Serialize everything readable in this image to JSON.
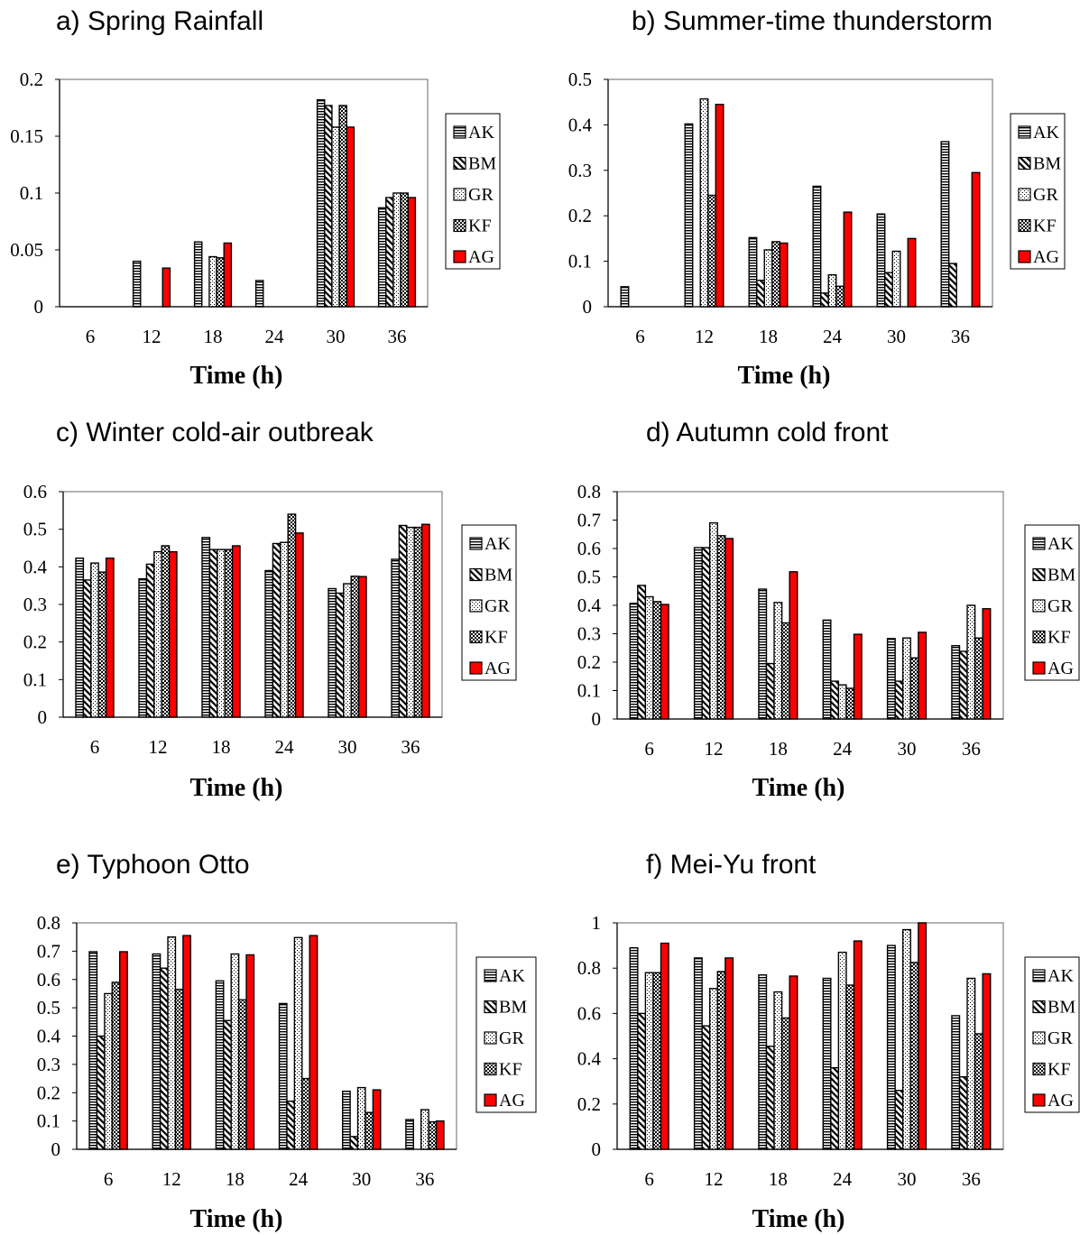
{
  "series_names": [
    "AK",
    "BM",
    "GR",
    "KF",
    "AG"
  ],
  "series_styles": {
    "AK": {
      "pattern": "horizontal-stripes",
      "color": "#000000"
    },
    "BM": {
      "pattern": "diagonal-stripes",
      "color": "#000000"
    },
    "GR": {
      "pattern": "dots",
      "color": "#000000"
    },
    "KF": {
      "pattern": "checkerboard",
      "color": "#000000"
    },
    "AG": {
      "pattern": "solid",
      "color": "#ff0000"
    }
  },
  "chart_data": [
    {
      "type": "bar",
      "title": "a) Spring Rainfall",
      "xlabel": "Time (h)",
      "ylabel": "",
      "categories": [
        "6",
        "12",
        "18",
        "24",
        "30",
        "36"
      ],
      "yticks": [
        "0",
        "0.05",
        "0.1",
        "0.15",
        "0.2"
      ],
      "ylim": [
        0,
        0.2
      ],
      "legend": [
        "AK",
        "BM",
        "GR",
        "KF",
        "AG"
      ],
      "legend_position": "right",
      "grid": false,
      "series": [
        {
          "name": "AK",
          "values": [
            0,
            0.04,
            0.057,
            0.023,
            0.182,
            0.087
          ]
        },
        {
          "name": "BM",
          "values": [
            0,
            0,
            0,
            0,
            0.177,
            0.096
          ]
        },
        {
          "name": "GR",
          "values": [
            0,
            0,
            0.044,
            0,
            0.158,
            0.1
          ]
        },
        {
          "name": "KF",
          "values": [
            0,
            0,
            0.043,
            0,
            0.177,
            0.1
          ]
        },
        {
          "name": "AG",
          "values": [
            0,
            0.034,
            0.056,
            0,
            0.158,
            0.096
          ]
        }
      ]
    },
    {
      "type": "bar",
      "title": "b) Summer-time thunderstorm",
      "xlabel": "Time (h)",
      "ylabel": "",
      "categories": [
        "6",
        "12",
        "18",
        "24",
        "30",
        "36"
      ],
      "yticks": [
        "0",
        "0.1",
        "0.2",
        "0.3",
        "0.4",
        "0.5"
      ],
      "ylim": [
        0,
        0.5
      ],
      "legend": [
        "AK",
        "BM",
        "GR",
        "KF",
        "AG"
      ],
      "legend_position": "right",
      "grid": false,
      "series": [
        {
          "name": "AK",
          "values": [
            0.044,
            0.402,
            0.152,
            0.265,
            0.204,
            0.363
          ]
        },
        {
          "name": "BM",
          "values": [
            0,
            0,
            0.058,
            0.03,
            0.075,
            0.095
          ]
        },
        {
          "name": "GR",
          "values": [
            0,
            0.457,
            0.125,
            0.07,
            0.122,
            0
          ]
        },
        {
          "name": "KF",
          "values": [
            0,
            0.245,
            0.143,
            0.045,
            0,
            0
          ]
        },
        {
          "name": "AG",
          "values": [
            0,
            0.445,
            0.14,
            0.208,
            0.15,
            0.295
          ]
        }
      ]
    },
    {
      "type": "bar",
      "title": "c) Winter cold-air outbreak",
      "xlabel": "Time (h)",
      "ylabel": "",
      "categories": [
        "6",
        "12",
        "18",
        "24",
        "30",
        "36"
      ],
      "yticks": [
        "0",
        "0.1",
        "0.2",
        "0.3",
        "0.4",
        "0.5",
        "0.6"
      ],
      "ylim": [
        0,
        0.6
      ],
      "legend": [
        "AK",
        "BM",
        "GR",
        "KF",
        "AG"
      ],
      "legend_position": "right",
      "grid": false,
      "series": [
        {
          "name": "AK",
          "values": [
            0.423,
            0.368,
            0.478,
            0.39,
            0.342,
            0.42
          ]
        },
        {
          "name": "BM",
          "values": [
            0.365,
            0.407,
            0.446,
            0.462,
            0.33,
            0.51
          ]
        },
        {
          "name": "GR",
          "values": [
            0.41,
            0.44,
            0.446,
            0.465,
            0.355,
            0.505
          ]
        },
        {
          "name": "KF",
          "values": [
            0.386,
            0.456,
            0.446,
            0.54,
            0.375,
            0.505
          ]
        },
        {
          "name": "AG",
          "values": [
            0.423,
            0.44,
            0.456,
            0.49,
            0.374,
            0.513
          ]
        }
      ]
    },
    {
      "type": "bar",
      "title": "d) Autumn cold front",
      "xlabel": "Time (h)",
      "ylabel": "",
      "categories": [
        "6",
        "12",
        "18",
        "24",
        "30",
        "36"
      ],
      "yticks": [
        "0",
        "0.1",
        "0.2",
        "0.3",
        "0.4",
        "0.5",
        "0.6",
        "0.7",
        "0.8"
      ],
      "ylim": [
        0,
        0.8
      ],
      "legend": [
        "AK",
        "BM",
        "GR",
        "KF",
        "AG"
      ],
      "legend_position": "right",
      "grid": false,
      "series": [
        {
          "name": "AK",
          "values": [
            0.407,
            0.603,
            0.457,
            0.348,
            0.283,
            0.258
          ]
        },
        {
          "name": "BM",
          "values": [
            0.47,
            0.603,
            0.195,
            0.133,
            0.133,
            0.238
          ]
        },
        {
          "name": "GR",
          "values": [
            0.43,
            0.69,
            0.41,
            0.12,
            0.285,
            0.4
          ]
        },
        {
          "name": "KF",
          "values": [
            0.413,
            0.645,
            0.338,
            0.108,
            0.215,
            0.285
          ]
        },
        {
          "name": "AG",
          "values": [
            0.403,
            0.635,
            0.518,
            0.298,
            0.305,
            0.388
          ]
        }
      ]
    },
    {
      "type": "bar",
      "title": "e) Typhoon Otto",
      "xlabel": "Time (h)",
      "ylabel": "",
      "categories": [
        "6",
        "12",
        "18",
        "24",
        "30",
        "36"
      ],
      "yticks": [
        "0",
        "0.1",
        "0.2",
        "0.3",
        "0.4",
        "0.5",
        "0.6",
        "0.7",
        "0.8"
      ],
      "ylim": [
        0,
        0.8
      ],
      "legend": [
        "AK",
        "BM",
        "GR",
        "KF",
        "AG"
      ],
      "legend_position": "right",
      "grid": false,
      "series": [
        {
          "name": "AK",
          "values": [
            0.698,
            0.69,
            0.595,
            0.515,
            0.205,
            0.105
          ]
        },
        {
          "name": "BM",
          "values": [
            0.4,
            0.64,
            0.455,
            0.17,
            0.045,
            0
          ]
        },
        {
          "name": "GR",
          "values": [
            0.55,
            0.75,
            0.69,
            0.748,
            0.218,
            0.14
          ]
        },
        {
          "name": "KF",
          "values": [
            0.59,
            0.565,
            0.528,
            0.25,
            0.13,
            0.097
          ]
        },
        {
          "name": "AG",
          "values": [
            0.698,
            0.755,
            0.687,
            0.755,
            0.21,
            0.1
          ]
        }
      ]
    },
    {
      "type": "bar",
      "title": "f) Mei-Yu front",
      "xlabel": "Time (h)",
      "ylabel": "",
      "categories": [
        "6",
        "12",
        "18",
        "24",
        "30",
        "36"
      ],
      "yticks": [
        "0",
        "0.2",
        "0.4",
        "0.6",
        "0.8",
        "1"
      ],
      "ylim": [
        0,
        1
      ],
      "legend": [
        "AK",
        "BM",
        "GR",
        "KF",
        "AG"
      ],
      "legend_position": "right",
      "grid": false,
      "series": [
        {
          "name": "AK",
          "values": [
            0.89,
            0.845,
            0.77,
            0.755,
            0.9,
            0.59
          ]
        },
        {
          "name": "BM",
          "values": [
            0.6,
            0.545,
            0.455,
            0.36,
            0.26,
            0.32
          ]
        },
        {
          "name": "GR",
          "values": [
            0.78,
            0.71,
            0.695,
            0.87,
            0.97,
            0.755
          ]
        },
        {
          "name": "KF",
          "values": [
            0.78,
            0.785,
            0.58,
            0.725,
            0.825,
            0.51
          ]
        },
        {
          "name": "AG",
          "values": [
            0.91,
            0.845,
            0.765,
            0.92,
            1.0,
            0.775
          ]
        }
      ]
    }
  ]
}
